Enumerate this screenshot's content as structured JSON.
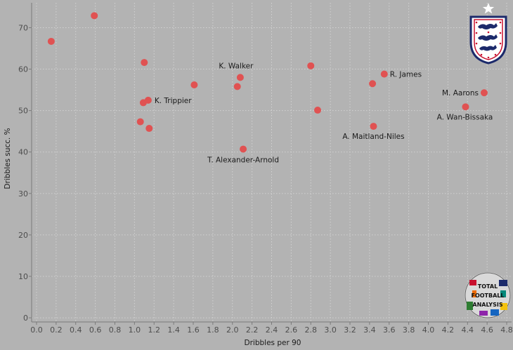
{
  "chart_data": {
    "type": "scatter",
    "title": "",
    "xlabel": "Dribbles per 90",
    "ylabel": "Dribbles succ. %",
    "xlim": [
      -0.05,
      4.85
    ],
    "ylim": [
      -1,
      76
    ],
    "x_ticks": [
      "0.0",
      "0.2",
      "0.4",
      "0.6",
      "0.8",
      "1.0",
      "1.2",
      "1.4",
      "1.6",
      "1.8",
      "2.0",
      "2.2",
      "2.4",
      "2.6",
      "2.8",
      "3.0",
      "3.2",
      "3.4",
      "3.6",
      "3.8",
      "4.0",
      "4.2",
      "4.4",
      "4.6",
      "4.8"
    ],
    "y_ticks": [
      "0",
      "10",
      "20",
      "30",
      "40",
      "50",
      "60",
      "70"
    ],
    "grid": true,
    "point_color": "#e05252",
    "points": [
      {
        "x": 0.15,
        "y": 66.7,
        "label": ""
      },
      {
        "x": 0.59,
        "y": 72.9,
        "label": ""
      },
      {
        "x": 1.1,
        "y": 61.6,
        "label": ""
      },
      {
        "x": 1.09,
        "y": 51.9,
        "label": ""
      },
      {
        "x": 1.14,
        "y": 52.5,
        "label": "K. Trippier"
      },
      {
        "x": 1.06,
        "y": 47.3,
        "label": ""
      },
      {
        "x": 1.15,
        "y": 45.7,
        "label": ""
      },
      {
        "x": 1.61,
        "y": 56.2,
        "label": ""
      },
      {
        "x": 2.05,
        "y": 55.8,
        "label": ""
      },
      {
        "x": 2.08,
        "y": 58.0,
        "label": "K. Walker"
      },
      {
        "x": 2.11,
        "y": 40.7,
        "label": "T. Alexander-Arnold"
      },
      {
        "x": 2.8,
        "y": 60.8,
        "label": ""
      },
      {
        "x": 2.87,
        "y": 50.1,
        "label": ""
      },
      {
        "x": 3.43,
        "y": 56.5,
        "label": ""
      },
      {
        "x": 3.44,
        "y": 46.2,
        "label": "A. Maitland-Niles"
      },
      {
        "x": 3.55,
        "y": 58.8,
        "label": "R. James"
      },
      {
        "x": 4.38,
        "y": 50.9,
        "label": "A. Wan-Bissaka"
      },
      {
        "x": 4.57,
        "y": 54.3,
        "label": "M. Aarons"
      }
    ]
  },
  "logo_text": [
    "TOTAL",
    "FOOTBALL",
    "ANALYSIS"
  ]
}
